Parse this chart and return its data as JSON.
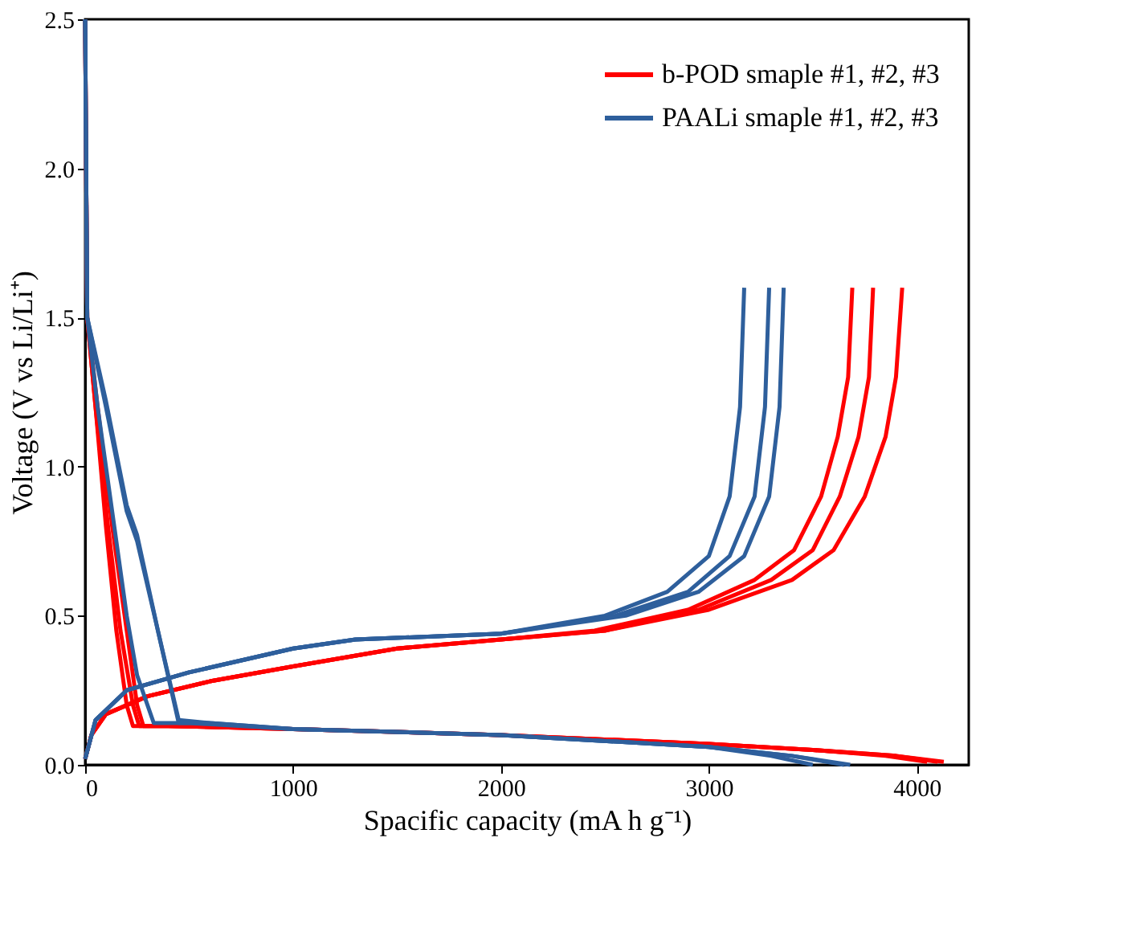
{
  "chart_data": {
    "type": "line",
    "xlabel": "Spacific capacity (mA h g⁻¹)",
    "ylabel": "Voltage (V vs Li/Li⁺)",
    "xlim": [
      0,
      4250
    ],
    "xticks": [
      0,
      1000,
      2000,
      3000,
      4000
    ],
    "ylim": [
      0,
      2.5
    ],
    "yticks": [
      {
        "value": 0,
        "label": "0.0"
      },
      0.5,
      {
        "value": 1,
        "label": "1.0"
      },
      1.5,
      {
        "value": 2,
        "label": "2.0"
      },
      2.5
    ],
    "grid": false,
    "legend": "top right",
    "marker": "none",
    "line_style": "solid",
    "series": [
      {
        "name": "b-POD smaple #1, #2, #3",
        "color": "#ff0000",
        "x": [
          0,
          10,
          50,
          100,
          150,
          200,
          230,
          400,
          1000,
          2000,
          3000,
          3500,
          3900,
          4130
        ],
        "values": [
          2.5,
          1.5,
          1.2,
          0.8,
          0.45,
          0.2,
          0.13,
          0.13,
          0.12,
          0.1,
          0.07,
          0.05,
          0.03,
          0.01
        ]
      },
      {
        "color": "#ff0000",
        "x": [
          0,
          10,
          50,
          110,
          170,
          230,
          260,
          400,
          1000,
          2000,
          3000,
          3500,
          3900,
          4100
        ],
        "values": [
          2.5,
          1.5,
          1.2,
          0.8,
          0.45,
          0.2,
          0.13,
          0.13,
          0.12,
          0.1,
          0.07,
          0.05,
          0.03,
          0.01
        ]
      },
      {
        "color": "#ff0000",
        "x": [
          0,
          10,
          60,
          130,
          200,
          250,
          280,
          400,
          1000,
          2000,
          3000,
          3500,
          3850,
          4050
        ],
        "values": [
          2.5,
          1.5,
          1.2,
          0.8,
          0.45,
          0.2,
          0.13,
          0.13,
          0.12,
          0.1,
          0.07,
          0.05,
          0.03,
          0.01
        ]
      },
      {
        "color": "#ff0000",
        "x": [
          0,
          30,
          100,
          300,
          600,
          1000,
          1500,
          2000,
          2500,
          3000,
          3400,
          3600,
          3750,
          3850,
          3900,
          3930
        ],
        "values": [
          0.02,
          0.1,
          0.17,
          0.23,
          0.28,
          0.33,
          0.39,
          0.42,
          0.45,
          0.52,
          0.62,
          0.72,
          0.9,
          1.1,
          1.3,
          1.6
        ]
      },
      {
        "color": "#ff0000",
        "x": [
          0,
          30,
          100,
          300,
          600,
          1000,
          1500,
          2000,
          2500,
          2950,
          3300,
          3500,
          3630,
          3720,
          3770,
          3790
        ],
        "values": [
          0.02,
          0.1,
          0.17,
          0.23,
          0.28,
          0.33,
          0.39,
          0.42,
          0.45,
          0.52,
          0.62,
          0.72,
          0.9,
          1.1,
          1.3,
          1.6
        ]
      },
      {
        "color": "#ff0000",
        "x": [
          0,
          30,
          100,
          300,
          600,
          1000,
          1500,
          2000,
          2450,
          2900,
          3220,
          3410,
          3540,
          3620,
          3670,
          3690
        ],
        "values": [
          0.02,
          0.1,
          0.17,
          0.23,
          0.28,
          0.33,
          0.39,
          0.42,
          0.45,
          0.52,
          0.62,
          0.72,
          0.9,
          1.1,
          1.3,
          1.6
        ]
      },
      {
        "name": "PAALi smaple #1, #2, #3",
        "color": "#2e5f9c",
        "x": [
          0,
          10,
          60,
          130,
          200,
          250,
          330,
          500,
          1000,
          2000,
          3000,
          3300,
          3500
        ],
        "values": [
          2.5,
          1.5,
          1.2,
          0.85,
          0.5,
          0.3,
          0.14,
          0.14,
          0.12,
          0.1,
          0.06,
          0.03,
          0.0
        ]
      },
      {
        "color": "#2e5f9c",
        "x": [
          0,
          10,
          100,
          200,
          250,
          350,
          450,
          600,
          1000,
          2000,
          3000,
          3400,
          3650
        ],
        "values": [
          2.5,
          1.5,
          1.2,
          0.85,
          0.75,
          0.45,
          0.15,
          0.14,
          0.12,
          0.1,
          0.06,
          0.03,
          0.0
        ]
      },
      {
        "color": "#2e5f9c",
        "x": [
          0,
          10,
          100,
          200,
          250,
          350,
          450,
          600,
          1000,
          2000,
          3000,
          3400,
          3680
        ],
        "values": [
          2.5,
          1.5,
          1.22,
          0.87,
          0.77,
          0.45,
          0.14,
          0.14,
          0.12,
          0.1,
          0.06,
          0.03,
          0.0
        ]
      },
      {
        "color": "#2e5f9c",
        "x": [
          0,
          50,
          200,
          500,
          1000,
          1300,
          2000,
          2500,
          2800,
          3000,
          3100,
          3150,
          3170
        ],
        "values": [
          0.02,
          0.15,
          0.25,
          0.31,
          0.39,
          0.42,
          0.44,
          0.5,
          0.58,
          0.7,
          0.9,
          1.2,
          1.6
        ]
      },
      {
        "color": "#2e5f9c",
        "x": [
          0,
          50,
          200,
          500,
          1000,
          1300,
          2000,
          2550,
          2900,
          3100,
          3220,
          3270,
          3290
        ],
        "values": [
          0.02,
          0.15,
          0.25,
          0.31,
          0.39,
          0.42,
          0.44,
          0.5,
          0.58,
          0.7,
          0.9,
          1.2,
          1.6
        ]
      },
      {
        "color": "#2e5f9c",
        "x": [
          0,
          50,
          200,
          500,
          1000,
          1300,
          2000,
          2600,
          2950,
          3170,
          3290,
          3340,
          3360
        ],
        "values": [
          0.02,
          0.15,
          0.25,
          0.31,
          0.39,
          0.42,
          0.44,
          0.5,
          0.58,
          0.7,
          0.9,
          1.2,
          1.6
        ]
      }
    ]
  }
}
